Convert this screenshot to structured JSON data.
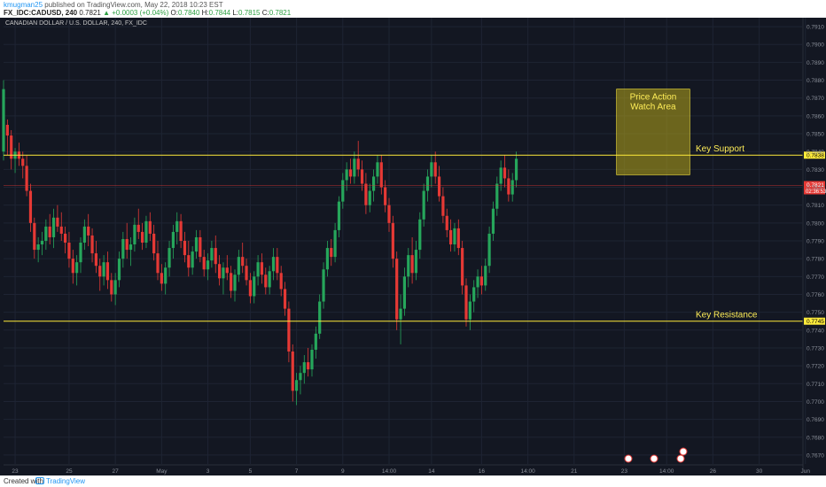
{
  "header": {
    "author": "kmugman25",
    "published": "published on TradingView.com, May 22, 2018 10:23 EST",
    "symbol": "FX_IDC:CADUSD, 240",
    "last": "0.7821",
    "change": "▲ +0.0003 (+0.04%)",
    "o_label": "O:",
    "o_value": "0.7840",
    "h_label": "H:",
    "h_value": "0.7844",
    "l_label": "L:",
    "l_value": "0.7815",
    "c_label": "C:",
    "c_value": "0.7821"
  },
  "chart_title": "CANADIAN DOLLAR / U.S. DOLLAR, 240, FX_IDC",
  "footer": {
    "created_with": "Created with",
    "brand": "TradingView"
  },
  "colors": {
    "background": "#131722",
    "up": "#26a65b",
    "down": "#e53935",
    "level": "#ffeb3b",
    "zone_fill": "#b7a51a",
    "grid": "#1e2433",
    "axis_text": "#8a8f99",
    "price_marker": "#e53935"
  },
  "chart_data": {
    "type": "candlestick",
    "title": "CANADIAN DOLLAR / U.S. DOLLAR, 240, FX_IDC",
    "ylim": [
      0.7665,
      0.7915
    ],
    "y_ticks": [
      "0.7910",
      "0.7900",
      "0.7890",
      "0.7880",
      "0.7870",
      "0.7860",
      "0.7850",
      "0.7840",
      "0.7830",
      "0.7820",
      "0.7810",
      "0.7800",
      "0.7790",
      "0.7780",
      "0.7770",
      "0.7760",
      "0.7750",
      "0.7740",
      "0.7730",
      "0.7720",
      "0.7710",
      "0.7700",
      "0.7690",
      "0.7680",
      "0.7670"
    ],
    "x_tick_labels": [
      {
        "label": "23",
        "i": 3
      },
      {
        "label": "25",
        "i": 17
      },
      {
        "label": "27",
        "i": 29
      },
      {
        "label": "May",
        "i": 41
      },
      {
        "label": "3",
        "i": 53
      },
      {
        "label": "5",
        "i": 64
      },
      {
        "label": "7",
        "i": 76
      },
      {
        "label": "9",
        "i": 88
      },
      {
        "label": "14:00",
        "i": 100
      },
      {
        "label": "14",
        "i": 111
      },
      {
        "label": "16",
        "i": 124
      },
      {
        "label": "14:00",
        "i": 136
      },
      {
        "label": "21",
        "i": 148
      },
      {
        "label": "23",
        "i": 161
      },
      {
        "label": "14:00",
        "i": 172
      },
      {
        "label": "26",
        "i": 184
      },
      {
        "label": "30",
        "i": 196
      },
      {
        "label": "Jun",
        "i": 208
      }
    ],
    "levels": [
      {
        "name": "Key Support",
        "value": 0.7838,
        "label": "0.7838"
      },
      {
        "name": "Key Resistance",
        "value": 0.7745,
        "label": "0.7745"
      }
    ],
    "last_price": {
      "value": 0.7821,
      "label": "0.7821",
      "countdown": "02:36:53"
    },
    "zone": {
      "label_line1": "Price Action",
      "label_line2": "Watch Area",
      "i_start": 159,
      "i_end": 178,
      "y_top": 0.7875,
      "y_bottom": 0.7827
    },
    "ohlc": [
      [
        0.784,
        0.788,
        0.7835,
        0.7875
      ],
      [
        0.7855,
        0.7858,
        0.7838,
        0.7849
      ],
      [
        0.7849,
        0.7852,
        0.783,
        0.7836
      ],
      [
        0.7836,
        0.7842,
        0.7828,
        0.784
      ],
      [
        0.784,
        0.7845,
        0.7832,
        0.7836
      ],
      [
        0.7836,
        0.784,
        0.7825,
        0.7832
      ],
      [
        0.7832,
        0.7838,
        0.7815,
        0.7818
      ],
      [
        0.7818,
        0.7822,
        0.7795,
        0.78
      ],
      [
        0.78,
        0.7803,
        0.778,
        0.7785
      ],
      [
        0.7785,
        0.7792,
        0.7778,
        0.7788
      ],
      [
        0.7788,
        0.7795,
        0.7782,
        0.779
      ],
      [
        0.779,
        0.7802,
        0.7785,
        0.7798
      ],
      [
        0.7798,
        0.7805,
        0.7788,
        0.7792
      ],
      [
        0.7792,
        0.7808,
        0.7786,
        0.7803
      ],
      [
        0.7803,
        0.781,
        0.7795,
        0.7798
      ],
      [
        0.7798,
        0.7806,
        0.779,
        0.7794
      ],
      [
        0.7794,
        0.7798,
        0.7783,
        0.7789
      ],
      [
        0.7789,
        0.7795,
        0.7775,
        0.778
      ],
      [
        0.778,
        0.7785,
        0.7766,
        0.7772
      ],
      [
        0.7772,
        0.7782,
        0.7765,
        0.7778
      ],
      [
        0.7778,
        0.7792,
        0.7772,
        0.7789
      ],
      [
        0.7789,
        0.7802,
        0.7785,
        0.7798
      ],
      [
        0.7798,
        0.7805,
        0.7787,
        0.7793
      ],
      [
        0.7793,
        0.7797,
        0.7778,
        0.7783
      ],
      [
        0.7783,
        0.779,
        0.7772,
        0.7776
      ],
      [
        0.7776,
        0.778,
        0.7762,
        0.777
      ],
      [
        0.777,
        0.7782,
        0.7765,
        0.7778
      ],
      [
        0.7778,
        0.7784,
        0.7763,
        0.7768
      ],
      [
        0.7768,
        0.7772,
        0.7756,
        0.776
      ],
      [
        0.776,
        0.7772,
        0.7754,
        0.7768
      ],
      [
        0.7768,
        0.7784,
        0.7764,
        0.778
      ],
      [
        0.778,
        0.7795,
        0.7775,
        0.7791
      ],
      [
        0.7791,
        0.78,
        0.778,
        0.7785
      ],
      [
        0.7785,
        0.7792,
        0.7776,
        0.7788
      ],
      [
        0.7788,
        0.7803,
        0.7784,
        0.7799
      ],
      [
        0.7799,
        0.7808,
        0.7791,
        0.7795
      ],
      [
        0.7795,
        0.78,
        0.7785,
        0.7789
      ],
      [
        0.7789,
        0.7804,
        0.7786,
        0.7801
      ],
      [
        0.7801,
        0.7806,
        0.779,
        0.7794
      ],
      [
        0.7794,
        0.7799,
        0.7779,
        0.7783
      ],
      [
        0.7783,
        0.779,
        0.7768,
        0.7772
      ],
      [
        0.7772,
        0.7777,
        0.7762,
        0.7766
      ],
      [
        0.7766,
        0.7778,
        0.776,
        0.7775
      ],
      [
        0.7775,
        0.779,
        0.777,
        0.7786
      ],
      [
        0.7786,
        0.7799,
        0.778,
        0.7795
      ],
      [
        0.7795,
        0.7806,
        0.7788,
        0.7801
      ],
      [
        0.7801,
        0.7805,
        0.7786,
        0.779
      ],
      [
        0.779,
        0.7795,
        0.7778,
        0.7782
      ],
      [
        0.7782,
        0.779,
        0.777,
        0.7775
      ],
      [
        0.7775,
        0.7787,
        0.7771,
        0.7784
      ],
      [
        0.7784,
        0.7796,
        0.778,
        0.7792
      ],
      [
        0.7792,
        0.7796,
        0.7778,
        0.7781
      ],
      [
        0.7781,
        0.7785,
        0.777,
        0.7774
      ],
      [
        0.7774,
        0.7783,
        0.7768,
        0.7779
      ],
      [
        0.7779,
        0.779,
        0.7775,
        0.7786
      ],
      [
        0.7786,
        0.7793,
        0.7772,
        0.7777
      ],
      [
        0.7777,
        0.7782,
        0.7765,
        0.7769
      ],
      [
        0.7769,
        0.7778,
        0.776,
        0.7775
      ],
      [
        0.7775,
        0.7782,
        0.7768,
        0.7772
      ],
      [
        0.7772,
        0.7776,
        0.7758,
        0.7762
      ],
      [
        0.7762,
        0.7774,
        0.7756,
        0.7771
      ],
      [
        0.7771,
        0.7785,
        0.7767,
        0.7781
      ],
      [
        0.7781,
        0.7789,
        0.7772,
        0.7776
      ],
      [
        0.7776,
        0.778,
        0.7765,
        0.7768
      ],
      [
        0.7768,
        0.7772,
        0.7755,
        0.7759
      ],
      [
        0.7759,
        0.7773,
        0.7755,
        0.777
      ],
      [
        0.777,
        0.7782,
        0.7765,
        0.7778
      ],
      [
        0.7778,
        0.7783,
        0.7766,
        0.7771
      ],
      [
        0.7771,
        0.7775,
        0.776,
        0.7764
      ],
      [
        0.7764,
        0.7776,
        0.776,
        0.7773
      ],
      [
        0.7773,
        0.7786,
        0.7768,
        0.7781
      ],
      [
        0.7781,
        0.7786,
        0.7768,
        0.7772
      ],
      [
        0.7772,
        0.7776,
        0.7759,
        0.7763
      ],
      [
        0.7763,
        0.7767,
        0.7748,
        0.7752
      ],
      [
        0.7752,
        0.7756,
        0.7722,
        0.7728
      ],
      [
        0.7728,
        0.7732,
        0.77,
        0.7706
      ],
      [
        0.7706,
        0.7716,
        0.7698,
        0.7712
      ],
      [
        0.7712,
        0.772,
        0.7704,
        0.7716
      ],
      [
        0.7716,
        0.7726,
        0.771,
        0.7722
      ],
      [
        0.7722,
        0.773,
        0.7714,
        0.7718
      ],
      [
        0.7718,
        0.7732,
        0.7714,
        0.7729
      ],
      [
        0.7729,
        0.7742,
        0.7724,
        0.7738
      ],
      [
        0.7738,
        0.776,
        0.7735,
        0.7756
      ],
      [
        0.7756,
        0.7778,
        0.7752,
        0.7774
      ],
      [
        0.7774,
        0.779,
        0.777,
        0.7786
      ],
      [
        0.7786,
        0.7791,
        0.7776,
        0.7781
      ],
      [
        0.7781,
        0.78,
        0.7778,
        0.7796
      ],
      [
        0.7796,
        0.7815,
        0.7792,
        0.7812
      ],
      [
        0.7812,
        0.7828,
        0.7808,
        0.7824
      ],
      [
        0.7824,
        0.7834,
        0.7818,
        0.783
      ],
      [
        0.783,
        0.7836,
        0.7822,
        0.7826
      ],
      [
        0.7826,
        0.784,
        0.7822,
        0.7836
      ],
      [
        0.7836,
        0.7846,
        0.7826,
        0.783
      ],
      [
        0.783,
        0.7835,
        0.7818,
        0.7822
      ],
      [
        0.7822,
        0.7828,
        0.7805,
        0.781
      ],
      [
        0.781,
        0.7822,
        0.7806,
        0.7818
      ],
      [
        0.7818,
        0.783,
        0.7812,
        0.7826
      ],
      [
        0.7826,
        0.7838,
        0.7822,
        0.7834
      ],
      [
        0.7834,
        0.7838,
        0.7816,
        0.782
      ],
      [
        0.782,
        0.7824,
        0.7806,
        0.781
      ],
      [
        0.781,
        0.7814,
        0.7795,
        0.78
      ],
      [
        0.78,
        0.7804,
        0.7775,
        0.778
      ],
      [
        0.778,
        0.7784,
        0.774,
        0.7746
      ],
      [
        0.7746,
        0.776,
        0.7732,
        0.7752
      ],
      [
        0.7752,
        0.7775,
        0.7748,
        0.777
      ],
      [
        0.777,
        0.7786,
        0.7764,
        0.7782
      ],
      [
        0.7782,
        0.7792,
        0.7766,
        0.7772
      ],
      [
        0.7772,
        0.779,
        0.7768,
        0.7785
      ],
      [
        0.7785,
        0.7806,
        0.778,
        0.7802
      ],
      [
        0.7802,
        0.7822,
        0.7798,
        0.7818
      ],
      [
        0.7818,
        0.783,
        0.7812,
        0.7826
      ],
      [
        0.7826,
        0.7838,
        0.782,
        0.7834
      ],
      [
        0.7834,
        0.784,
        0.7822,
        0.7826
      ],
      [
        0.7826,
        0.7832,
        0.7812,
        0.7815
      ],
      [
        0.7815,
        0.782,
        0.78,
        0.7804
      ],
      [
        0.7804,
        0.7808,
        0.7792,
        0.7796
      ],
      [
        0.7796,
        0.7802,
        0.7784,
        0.7788
      ],
      [
        0.7788,
        0.78,
        0.7784,
        0.7797
      ],
      [
        0.7797,
        0.7802,
        0.7782,
        0.7786
      ],
      [
        0.7786,
        0.779,
        0.776,
        0.7765
      ],
      [
        0.7765,
        0.7769,
        0.7742,
        0.7746
      ],
      [
        0.7746,
        0.776,
        0.774,
        0.7756
      ],
      [
        0.7756,
        0.7768,
        0.775,
        0.7764
      ],
      [
        0.7764,
        0.7774,
        0.7758,
        0.777
      ],
      [
        0.777,
        0.7776,
        0.776,
        0.7765
      ],
      [
        0.7765,
        0.778,
        0.7762,
        0.7776
      ],
      [
        0.7776,
        0.7798,
        0.7772,
        0.7794
      ],
      [
        0.7794,
        0.7812,
        0.779,
        0.7808
      ],
      [
        0.7808,
        0.7826,
        0.7804,
        0.7822
      ],
      [
        0.7822,
        0.7835,
        0.7818,
        0.7831
      ],
      [
        0.7831,
        0.7838,
        0.782,
        0.7825
      ],
      [
        0.7825,
        0.783,
        0.7812,
        0.7816
      ],
      [
        0.7816,
        0.7828,
        0.7812,
        0.7824
      ],
      [
        0.7824,
        0.784,
        0.782,
        0.7836
      ]
    ]
  }
}
